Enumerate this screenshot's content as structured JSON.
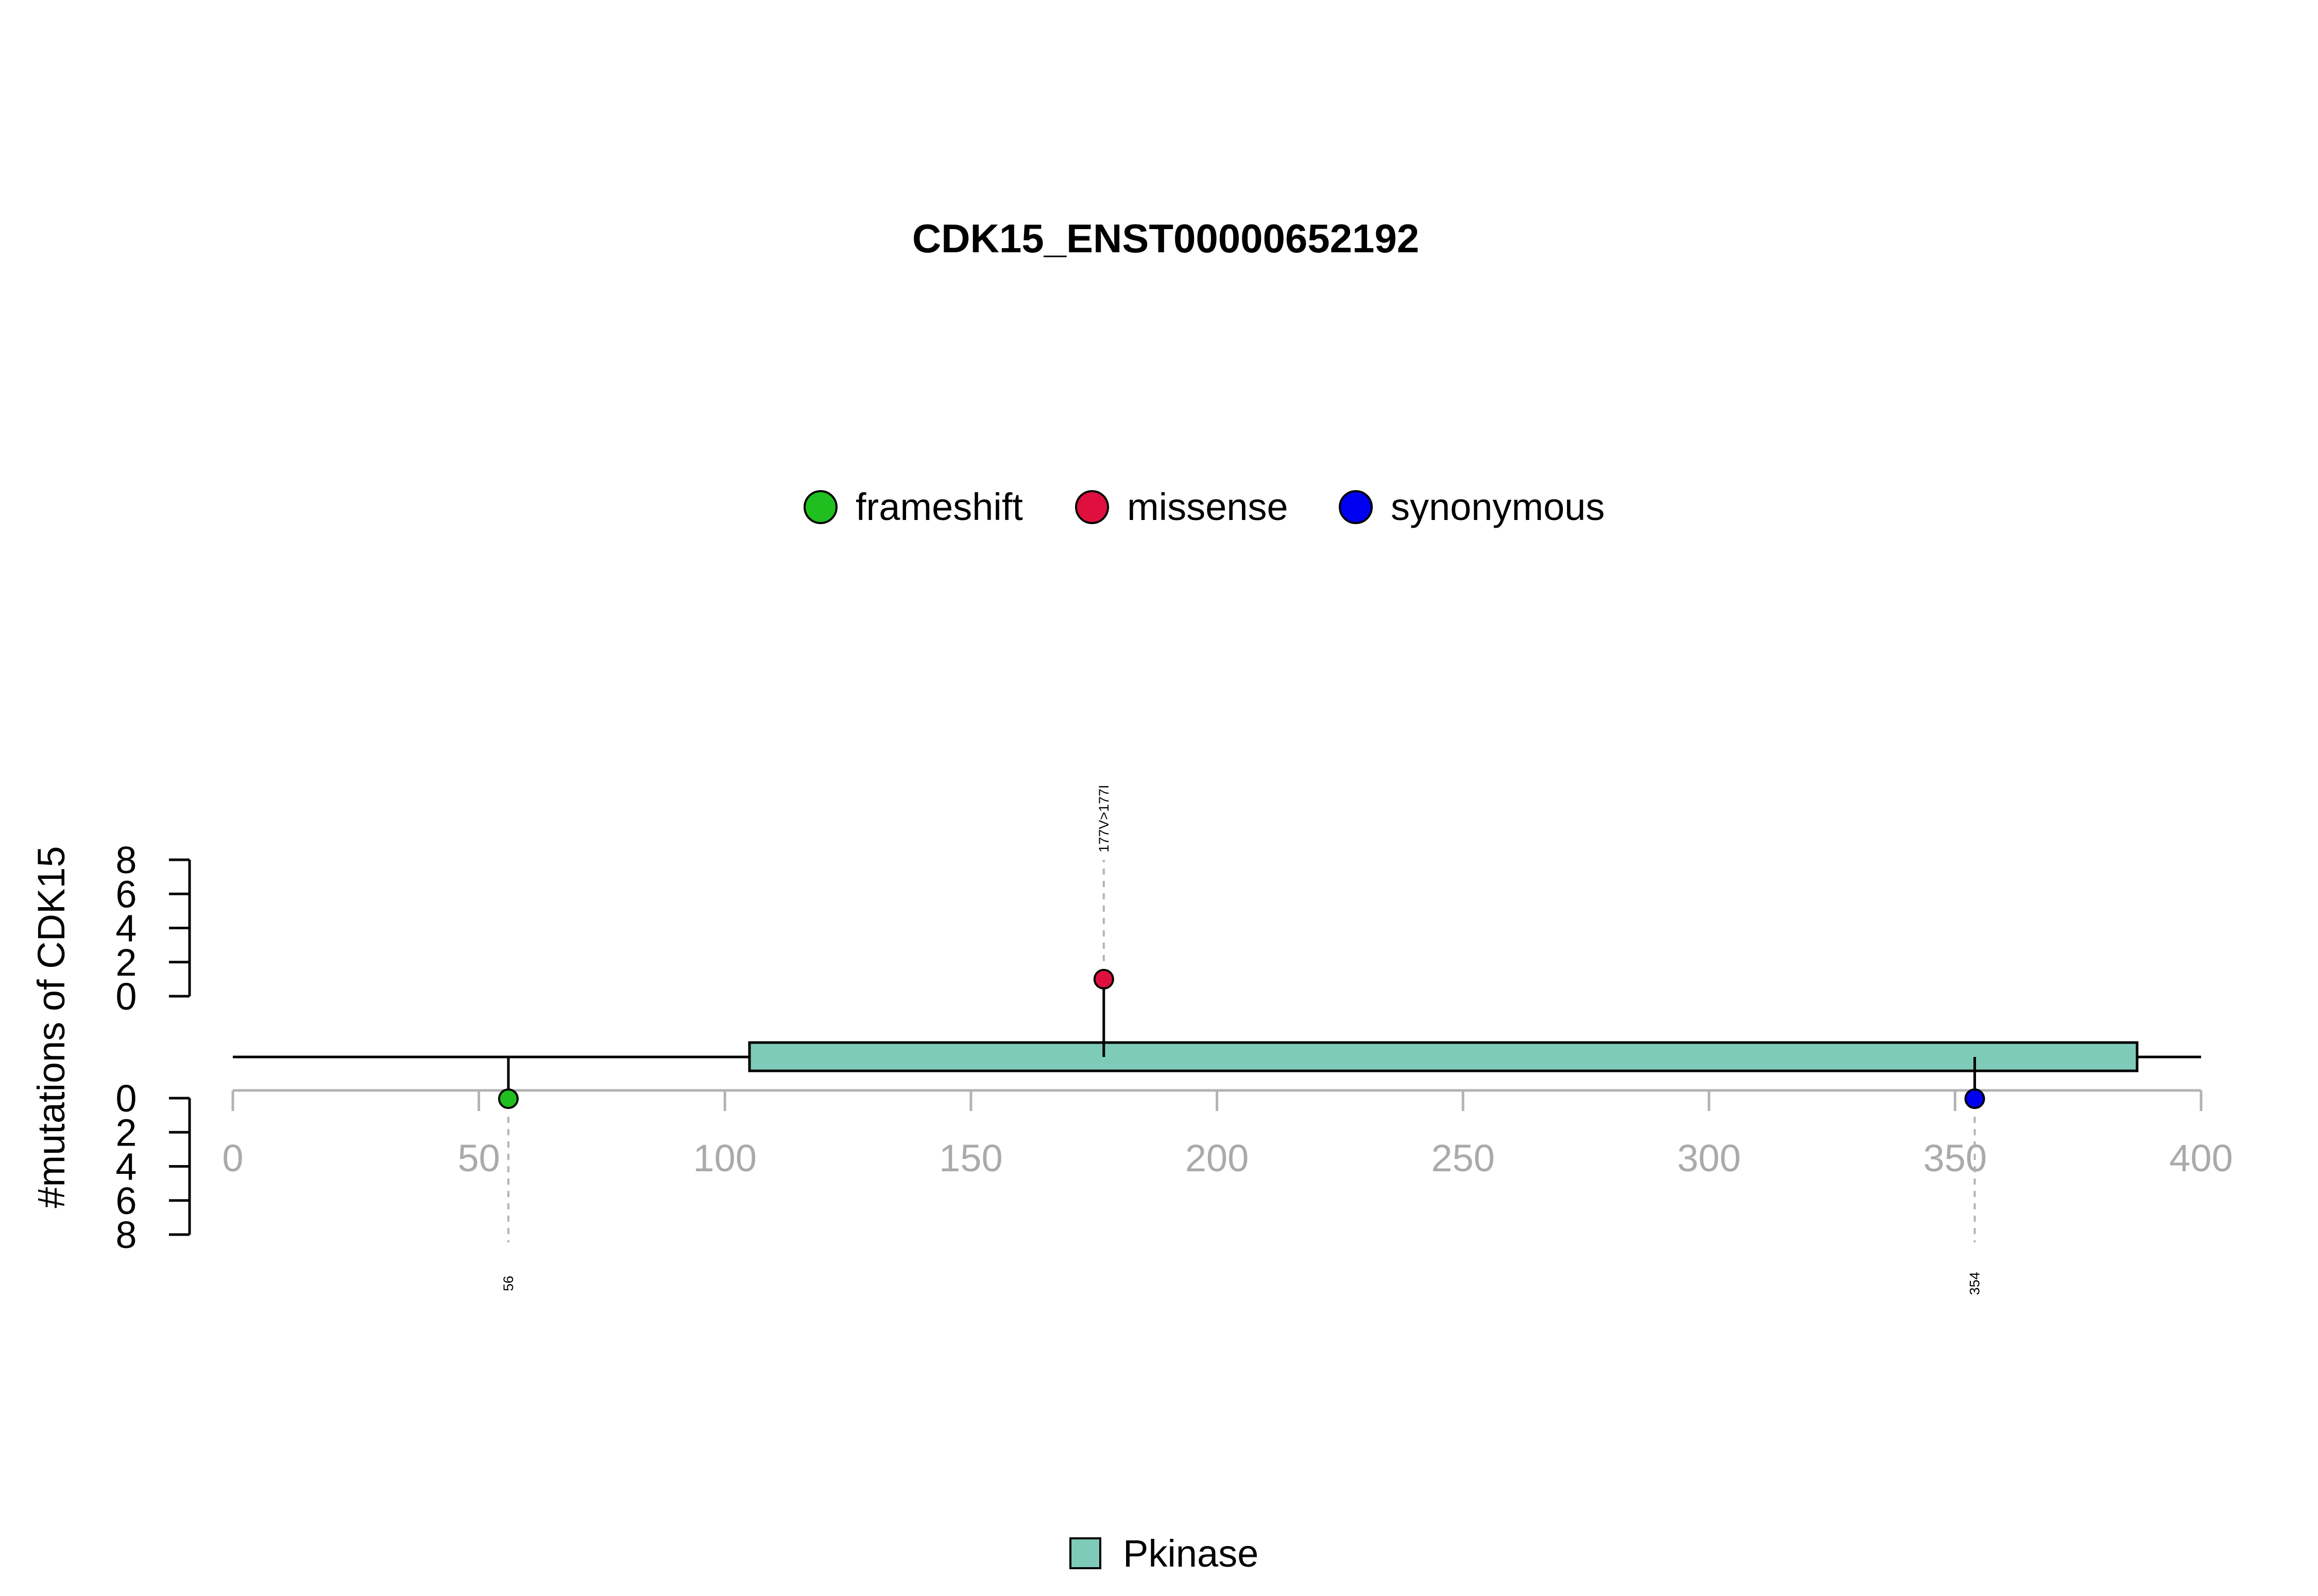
{
  "chart_data": {
    "type": "lollipop",
    "title": "CDK15_ENST00000652192",
    "ylabel": "#mutations of CDK15",
    "protein_length": 400,
    "xlim": [
      0,
      400
    ],
    "x_ticks": [
      0,
      50,
      100,
      150,
      200,
      250,
      300,
      350,
      400
    ],
    "y_ticks_upper": [
      0,
      2,
      4,
      6,
      8
    ],
    "y_ticks_lower": [
      0,
      2,
      4,
      6,
      8
    ],
    "ylim": [
      0,
      8
    ],
    "legend_top": [
      {
        "label": "frameshift",
        "color": "#1fbf1f"
      },
      {
        "label": "missense",
        "color": "#e0103e"
      },
      {
        "label": "synonymous",
        "color": "#0000f0"
      }
    ],
    "domains": [
      {
        "name": "Pkinase",
        "start": 105,
        "end": 387,
        "color": "#7fcbb9"
      }
    ],
    "mutations": [
      {
        "position": 56,
        "label": "56",
        "type": "frameshift",
        "count": 1,
        "side": "lower"
      },
      {
        "position": 177,
        "label": "177V>177I",
        "type": "missense",
        "count": 1,
        "side": "upper"
      },
      {
        "position": 354,
        "label": "354",
        "type": "synonymous",
        "count": 1,
        "side": "lower"
      }
    ]
  }
}
